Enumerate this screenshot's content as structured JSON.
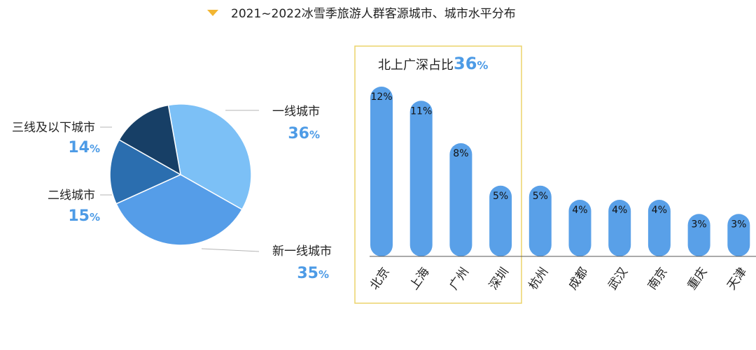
{
  "title": "2021~2022冰雪季旅游人群客源城市、城市水平分布",
  "colors": {
    "title_marker": "#f2b632",
    "highlight_border": "#ecd36a",
    "bar": "#59a0e8",
    "percent_text": "#4d9be6",
    "leader_line": "#b5b5b5",
    "axis": "#555555"
  },
  "chart_data": [
    {
      "type": "pie",
      "slices": [
        {
          "label": "一线城市",
          "value": 36,
          "pct_text": "36",
          "pct_sign": "%",
          "color": "#7cc0f6"
        },
        {
          "label": "新一线城市",
          "value": 35,
          "pct_text": "35",
          "pct_sign": "%",
          "color": "#559de8"
        },
        {
          "label": "二线城市",
          "value": 15,
          "pct_text": "15",
          "pct_sign": "%",
          "color": "#2b6eaf"
        },
        {
          "label": "三线及以下城市",
          "value": 14,
          "pct_text": "14",
          "pct_sign": "%",
          "color": "#173f66"
        }
      ]
    },
    {
      "type": "bar",
      "categories": [
        "北京",
        "上海",
        "广州",
        "深圳",
        "杭州",
        "成都",
        "武汉",
        "南京",
        "重庆",
        "天津"
      ],
      "values": [
        12,
        11,
        8,
        5,
        5,
        4,
        4,
        4,
        3,
        3
      ],
      "data_labels": [
        "12%",
        "11%",
        "8%",
        "5%",
        "5%",
        "4%",
        "4%",
        "4%",
        "3%",
        "3%"
      ],
      "ylim": [
        0,
        12
      ],
      "highlight": {
        "text": "北上广深占比",
        "pct_text": "36",
        "pct_sign": "%",
        "categories": [
          "北京",
          "上海",
          "广州",
          "深圳"
        ]
      }
    }
  ]
}
